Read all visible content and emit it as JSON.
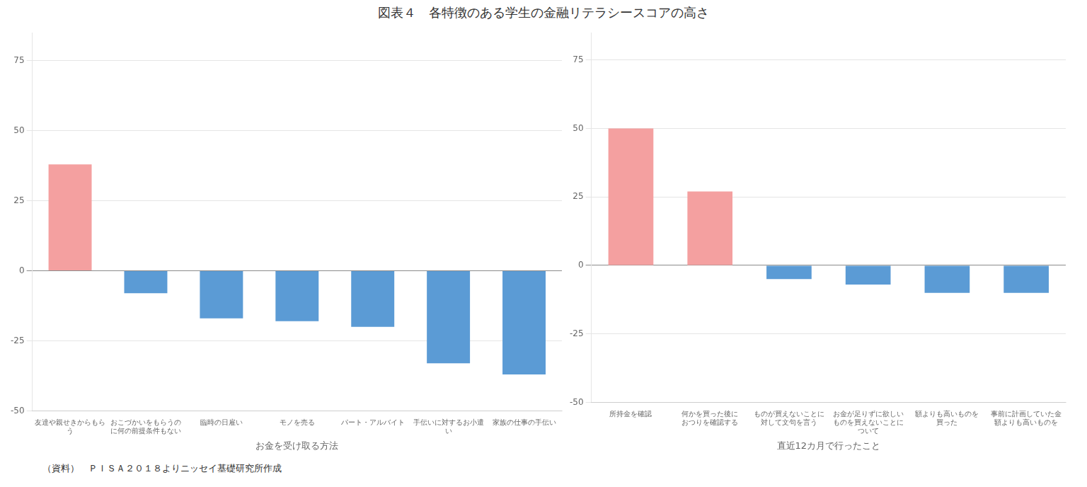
{
  "chart_data": [
    {
      "type": "bar",
      "title": "図表４　各特徴のある学生の金融リテラシースコアの高さ",
      "caption": "（資料）　ＰＩＳＡ２０１８よりニッセイ基礎研究所作成",
      "xlabel": "お金を受け取る方法",
      "categories": [
        [
          "友達や親せきからもら",
          "う"
        ],
        [
          "おこづかいをもらうの",
          "に何の前提条件もない"
        ],
        [
          "臨時の日雇い"
        ],
        [
          "モノを売る"
        ],
        [
          "パート・アルバイト"
        ],
        [
          "手伝いに対するお小遣",
          "い"
        ],
        [
          "家族の仕事の手伝い"
        ]
      ],
      "values": [
        38,
        -8,
        -17,
        -18,
        -20,
        -33,
        -37
      ],
      "colors": [
        "#F4A0A0",
        "#5B9BD5",
        "#5B9BD5",
        "#5B9BD5",
        "#5B9BD5",
        "#5B9BD5",
        "#5B9BD5"
      ],
      "ylim": [
        -50,
        85
      ],
      "yticks": [
        -50,
        -25,
        0,
        25,
        50,
        75
      ],
      "grid": true
    },
    {
      "type": "bar",
      "xlabel": "直近12カ月で行ったこと",
      "categories": [
        [
          "所持金を確認"
        ],
        [
          "何かを買った後に",
          "おつりを確認する"
        ],
        [
          "ものが買えないことに",
          "対して文句を言う"
        ],
        [
          "お金が足りずに欲しい",
          "ものを買えないことに",
          "ついて"
        ],
        [
          "額よりも高いものを",
          "買った"
        ],
        [
          "事前に計画していた金",
          "額よりも高いものを"
        ]
      ],
      "values": [
        50,
        27,
        -5,
        -7,
        -10,
        -10
      ],
      "colors": [
        "#F4A0A0",
        "#F4A0A0",
        "#5B9BD5",
        "#5B9BD5",
        "#5B9BD5",
        "#5B9BD5"
      ],
      "ylim": [
        -50,
        85
      ],
      "yticks": [
        -50,
        -25,
        0,
        25,
        50,
        75
      ],
      "grid": true
    }
  ]
}
